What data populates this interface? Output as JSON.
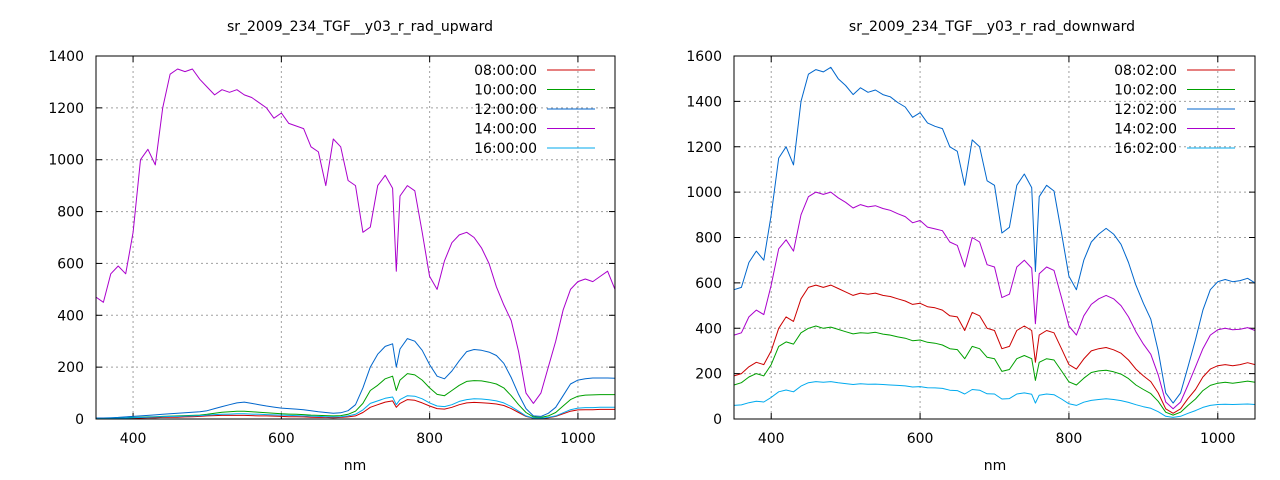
{
  "chart_data": [
    {
      "type": "line",
      "title": "sr_2009_234_TGF__y03_r_rad_upward",
      "xlabel": "nm",
      "ylabel": "",
      "xlim": [
        350,
        1050
      ],
      "ylim": [
        0,
        1400
      ],
      "xticks": [
        400,
        600,
        800,
        1000
      ],
      "yticks": [
        0,
        200,
        400,
        600,
        800,
        1000,
        1200,
        1400
      ],
      "grid": true,
      "legend_position": "top-right",
      "x": [
        350,
        360,
        370,
        380,
        390,
        400,
        410,
        420,
        430,
        440,
        450,
        460,
        470,
        480,
        490,
        500,
        510,
        520,
        530,
        540,
        550,
        560,
        570,
        580,
        590,
        600,
        610,
        620,
        630,
        640,
        650,
        660,
        670,
        680,
        690,
        700,
        710,
        720,
        730,
        740,
        750,
        755,
        760,
        770,
        780,
        790,
        800,
        810,
        820,
        830,
        840,
        850,
        860,
        870,
        880,
        890,
        900,
        910,
        920,
        930,
        940,
        950,
        960,
        970,
        980,
        990,
        1000,
        1010,
        1020,
        1030,
        1040,
        1050
      ],
      "series": [
        {
          "name": "08:00:00",
          "color": "#cc0000",
          "values": [
            1,
            1,
            2,
            2,
            3,
            3,
            4,
            5,
            5,
            6,
            7,
            7,
            8,
            9,
            10,
            12,
            13,
            14,
            14,
            14,
            14,
            13,
            12,
            12,
            11,
            10,
            9,
            9,
            8,
            7,
            6,
            6,
            5,
            6,
            8,
            12,
            25,
            45,
            55,
            65,
            70,
            45,
            60,
            75,
            72,
            62,
            50,
            40,
            38,
            45,
            55,
            62,
            64,
            63,
            61,
            58,
            52,
            40,
            25,
            10,
            3,
            2,
            5,
            10,
            20,
            30,
            35,
            36,
            36,
            37,
            37,
            37
          ]
        },
        {
          "name": "10:00:00",
          "color": "#00a000",
          "values": [
            2,
            2,
            3,
            4,
            5,
            6,
            7,
            8,
            9,
            10,
            11,
            12,
            13,
            14,
            15,
            18,
            22,
            26,
            28,
            30,
            30,
            28,
            26,
            24,
            22,
            20,
            19,
            18,
            17,
            15,
            14,
            13,
            12,
            13,
            18,
            30,
            60,
            110,
            130,
            155,
            165,
            110,
            150,
            175,
            170,
            150,
            120,
            95,
            90,
            110,
            130,
            145,
            148,
            147,
            142,
            135,
            120,
            90,
            55,
            25,
            8,
            6,
            12,
            25,
            50,
            75,
            88,
            92,
            93,
            94,
            94,
            94
          ]
        },
        {
          "name": "12:00:00",
          "color": "#0066cc",
          "values": [
            4,
            4,
            5,
            6,
            8,
            10,
            12,
            14,
            16,
            18,
            20,
            22,
            24,
            26,
            28,
            32,
            40,
            48,
            55,
            62,
            65,
            60,
            55,
            50,
            46,
            42,
            40,
            38,
            36,
            32,
            28,
            25,
            22,
            24,
            32,
            55,
            120,
            200,
            250,
            280,
            290,
            200,
            270,
            310,
            300,
            265,
            210,
            165,
            155,
            185,
            225,
            260,
            268,
            265,
            258,
            245,
            215,
            160,
            95,
            40,
            12,
            10,
            22,
            45,
            90,
            135,
            150,
            155,
            158,
            158,
            158,
            157
          ]
        },
        {
          "name": "14:00:00",
          "color": "#aa00cc",
          "values": [
            470,
            450,
            560,
            590,
            560,
            720,
            1000,
            1040,
            980,
            1200,
            1330,
            1350,
            1340,
            1350,
            1310,
            1280,
            1250,
            1270,
            1260,
            1270,
            1250,
            1240,
            1220,
            1200,
            1160,
            1180,
            1140,
            1130,
            1120,
            1050,
            1030,
            900,
            1080,
            1050,
            920,
            900,
            720,
            740,
            900,
            940,
            890,
            570,
            860,
            900,
            880,
            720,
            550,
            500,
            610,
            680,
            710,
            720,
            700,
            660,
            600,
            510,
            440,
            380,
            260,
            100,
            60,
            100,
            200,
            300,
            420,
            500,
            530,
            540,
            530,
            550,
            570,
            500
          ]
        },
        {
          "name": "16:00:00",
          "color": "#00aaee",
          "values": [
            2,
            2,
            3,
            3,
            4,
            5,
            6,
            7,
            8,
            9,
            10,
            10,
            11,
            12,
            13,
            15,
            17,
            18,
            19,
            20,
            20,
            19,
            18,
            17,
            16,
            15,
            14,
            13,
            12,
            11,
            10,
            9,
            8,
            9,
            12,
            18,
            35,
            60,
            70,
            80,
            85,
            55,
            75,
            90,
            88,
            78,
            62,
            50,
            48,
            55,
            68,
            75,
            78,
            77,
            74,
            70,
            62,
            48,
            30,
            12,
            4,
            3,
            6,
            12,
            24,
            36,
            42,
            44,
            44,
            45,
            45,
            45
          ]
        }
      ]
    },
    {
      "type": "line",
      "title": "sr_2009_234_TGF__y03_r_rad_downward",
      "xlabel": "nm",
      "ylabel": "",
      "xlim": [
        350,
        1050
      ],
      "ylim": [
        0,
        1600
      ],
      "xticks": [
        400,
        600,
        800,
        1000
      ],
      "yticks": [
        0,
        200,
        400,
        600,
        800,
        1000,
        1200,
        1400,
        1600
      ],
      "grid": true,
      "legend_position": "top-right",
      "x": [
        350,
        360,
        370,
        380,
        390,
        400,
        410,
        420,
        430,
        440,
        450,
        460,
        470,
        480,
        490,
        500,
        510,
        520,
        530,
        540,
        550,
        560,
        570,
        580,
        590,
        600,
        610,
        620,
        630,
        640,
        650,
        660,
        670,
        680,
        690,
        700,
        710,
        720,
        730,
        740,
        750,
        755,
        760,
        770,
        780,
        790,
        800,
        810,
        820,
        830,
        840,
        850,
        860,
        870,
        880,
        890,
        900,
        910,
        920,
        930,
        940,
        950,
        960,
        970,
        980,
        990,
        1000,
        1010,
        1020,
        1030,
        1040,
        1050
      ],
      "series": [
        {
          "name": "08:02:00",
          "color": "#cc0000",
          "values": [
            190,
            200,
            230,
            250,
            240,
            300,
            400,
            450,
            430,
            530,
            580,
            590,
            580,
            590,
            575,
            560,
            545,
            555,
            550,
            555,
            545,
            540,
            530,
            520,
            505,
            510,
            495,
            490,
            480,
            455,
            450,
            390,
            470,
            455,
            400,
            390,
            310,
            320,
            390,
            410,
            390,
            250,
            370,
            390,
            380,
            310,
            240,
            220,
            265,
            300,
            310,
            315,
            305,
            290,
            260,
            220,
            190,
            165,
            115,
            45,
            25,
            45,
            90,
            130,
            185,
            220,
            235,
            240,
            235,
            240,
            248,
            240
          ]
        },
        {
          "name": "10:02:00",
          "color": "#00a000",
          "values": [
            150,
            160,
            185,
            200,
            190,
            240,
            320,
            340,
            330,
            380,
            400,
            410,
            400,
            405,
            395,
            385,
            375,
            380,
            378,
            382,
            374,
            370,
            362,
            356,
            345,
            348,
            338,
            334,
            326,
            310,
            306,
            266,
            320,
            310,
            272,
            266,
            210,
            218,
            266,
            280,
            266,
            170,
            250,
            266,
            260,
            212,
            164,
            150,
            180,
            205,
            212,
            215,
            208,
            198,
            178,
            150,
            130,
            112,
            78,
            30,
            17,
            30,
            60,
            88,
            125,
            148,
            158,
            162,
            158,
            162,
            167,
            162
          ]
        },
        {
          "name": "12:02:00",
          "color": "#0066cc",
          "values": [
            570,
            580,
            690,
            740,
            700,
            900,
            1150,
            1200,
            1120,
            1400,
            1520,
            1540,
            1530,
            1550,
            1500,
            1470,
            1430,
            1460,
            1440,
            1450,
            1430,
            1420,
            1395,
            1375,
            1330,
            1350,
            1305,
            1290,
            1280,
            1200,
            1180,
            1030,
            1230,
            1200,
            1050,
            1030,
            820,
            845,
            1030,
            1080,
            1020,
            650,
            980,
            1030,
            1005,
            820,
            630,
            570,
            700,
            780,
            815,
            840,
            815,
            770,
            690,
            590,
            510,
            440,
            300,
            115,
            70,
            115,
            230,
            350,
            480,
            570,
            605,
            615,
            605,
            610,
            620,
            600
          ]
        },
        {
          "name": "14:02:00",
          "color": "#aa00cc",
          "values": [
            370,
            380,
            450,
            480,
            460,
            590,
            750,
            790,
            740,
            900,
            980,
            1000,
            990,
            1000,
            975,
            955,
            930,
            945,
            935,
            940,
            928,
            920,
            905,
            892,
            865,
            875,
            846,
            838,
            830,
            780,
            765,
            670,
            800,
            780,
            680,
            670,
            535,
            550,
            670,
            700,
            665,
            420,
            640,
            670,
            655,
            535,
            410,
            370,
            455,
            505,
            530,
            545,
            530,
            500,
            450,
            385,
            330,
            285,
            195,
            75,
            45,
            75,
            150,
            230,
            310,
            370,
            393,
            400,
            393,
            396,
            403,
            390
          ]
        },
        {
          "name": "16:02:00",
          "color": "#00aaee",
          "values": [
            60,
            62,
            72,
            78,
            75,
            95,
            120,
            128,
            120,
            145,
            160,
            165,
            162,
            165,
            160,
            156,
            152,
            155,
            153,
            154,
            152,
            150,
            148,
            146,
            141,
            143,
            138,
            137,
            135,
            127,
            125,
            110,
            130,
            127,
            111,
            110,
            88,
            90,
            110,
            115,
            109,
            70,
            105,
            110,
            107,
            88,
            67,
            60,
            74,
            82,
            86,
            89,
            86,
            81,
            73,
            63,
            54,
            47,
            32,
            12,
            7,
            12,
            25,
            37,
            51,
            60,
            64,
            65,
            64,
            65,
            66,
            64
          ]
        }
      ]
    }
  ]
}
